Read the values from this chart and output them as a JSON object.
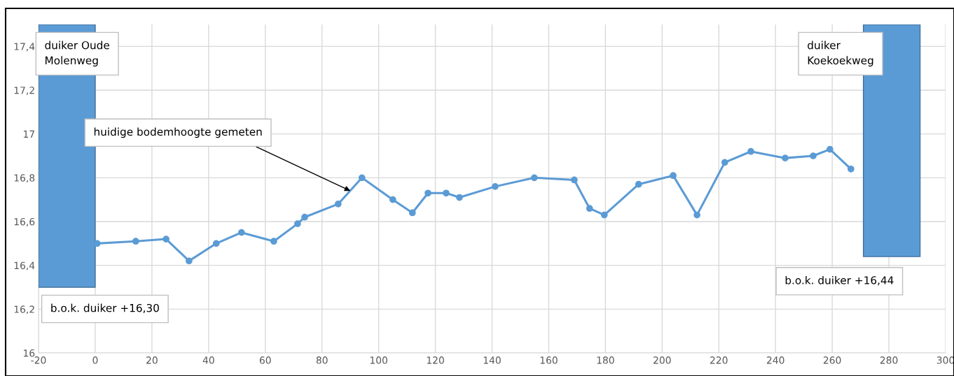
{
  "chart_data": {
    "type": "line",
    "xlim": [
      -20,
      300
    ],
    "xticks": [
      -20,
      0,
      20,
      40,
      60,
      80,
      100,
      120,
      140,
      160,
      180,
      200,
      220,
      240,
      260,
      280,
      300
    ],
    "ylim": [
      16,
      17.5
    ],
    "yticks": [
      16,
      {
        "value": 16.2,
        "label": "16,2"
      },
      {
        "value": 16.4,
        "label": "16,4"
      },
      {
        "value": 16.6,
        "label": "16,6"
      },
      {
        "value": 16.8,
        "label": "16,8"
      },
      17,
      {
        "value": 17.2,
        "label": "17,2"
      },
      {
        "value": 17.4,
        "label": "17,4"
      }
    ],
    "grid": true,
    "marker": "circle",
    "line_style": "solid",
    "series": [
      {
        "type": "bar",
        "color": "#5b9bd5",
        "x": [
          -10,
          281
        ],
        "base": [
          16.3,
          16.44
        ],
        "values": [
          1.2,
          1.06
        ]
      },
      {
        "color": "#5b9bd5",
        "x": [
          0.7,
          14.3,
          25,
          33.1,
          42.7,
          51.6,
          63,
          71.4,
          73.9,
          85.7,
          94.1,
          105,
          111.9,
          117.4,
          123.8,
          128.5,
          141.1,
          154.9,
          169,
          174.4,
          179.6,
          191.7,
          203.9,
          212.3,
          222.1,
          231.3,
          243.4,
          253.3,
          259.2,
          266.6
        ],
        "values": [
          16.5,
          16.51,
          16.52,
          16.42,
          16.5,
          16.55,
          16.51,
          16.59,
          16.62,
          16.68,
          16.8,
          16.7,
          16.64,
          16.73,
          16.73,
          16.71,
          16.76,
          16.8,
          16.79,
          16.66,
          16.63,
          16.77,
          16.81,
          16.63,
          16.87,
          16.92,
          16.89,
          16.9,
          16.93,
          16.84
        ]
      }
    ],
    "annotations": [
      {
        "text": "duiker Oude\nMolenweg",
        "x": -10,
        "y": 17.5
      },
      {
        "text": "b.o.k. duiker +16,30",
        "x": -10,
        "y": 16.3
      },
      {
        "text": "huidige bodemhoogte gemeten",
        "x": 90,
        "y": 16.74
      },
      {
        "text": "duiker\nKoekoekweg",
        "x": 281,
        "y": 17.5
      },
      {
        "text": "b.o.k. duiker +16,44",
        "x": 281,
        "y": 16.44
      }
    ]
  }
}
